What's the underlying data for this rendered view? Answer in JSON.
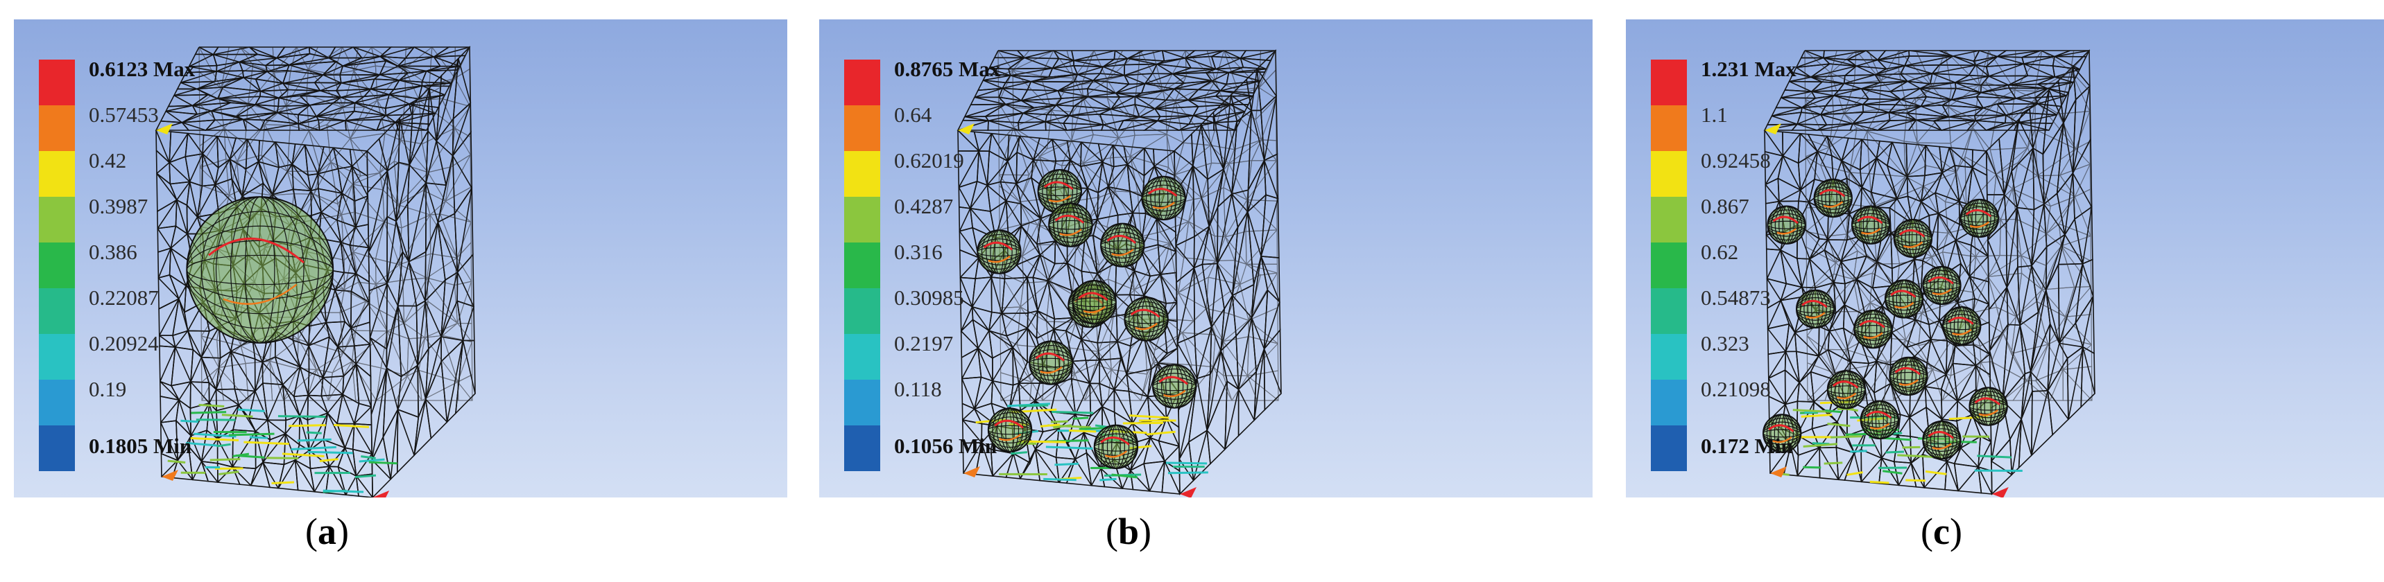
{
  "colors": [
    "#e8262b",
    "#f07a1c",
    "#f2e213",
    "#8bc63e",
    "#29b84a",
    "#26ba8a",
    "#29c2c2",
    "#2a9ad2",
    "#1f5fb0"
  ],
  "panels": [
    {
      "id": "a",
      "caption": "a",
      "max": "0.6123 Max",
      "labels": [
        "0.57453",
        "0.42",
        "0.3987",
        "0.386",
        "0.22087",
        "0.20924",
        "0.19"
      ],
      "min": "0.1805 Min",
      "particles": 1
    },
    {
      "id": "b",
      "caption": "b",
      "max": "0.8765 Max",
      "labels": [
        "0.64",
        "0.62019",
        "0.4287",
        "0.316",
        "0.30985",
        "0.2197",
        "0.118"
      ],
      "min": "0.1056 Min",
      "particles": 12
    },
    {
      "id": "c",
      "caption": "c",
      "max": "1.231 Max",
      "labels": [
        "1.1",
        "0.92458",
        "0.867",
        "0.62",
        "0.54873",
        "0.323",
        "0.21098"
      ],
      "min": "0.172 Min",
      "particles": 16
    }
  ]
}
